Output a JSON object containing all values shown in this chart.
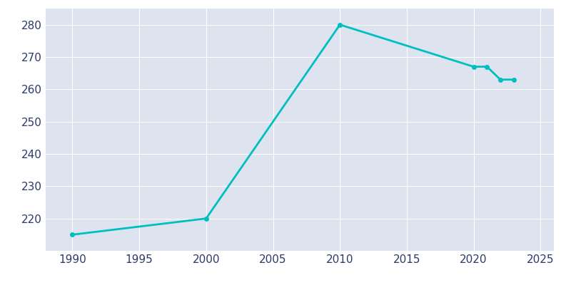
{
  "years": [
    1990,
    2000,
    2010,
    2020,
    2021,
    2022,
    2023
  ],
  "population": [
    215,
    220,
    280,
    267,
    267,
    263,
    263
  ],
  "line_color": "#00BFBF",
  "marker_color": "#00BFBF",
  "bg_color": "#FFFFFF",
  "plot_bg_color": "#DDE4EF",
  "grid_color": "#FFFFFF",
  "text_color": "#2B3A6B",
  "xlim": [
    1988,
    2026
  ],
  "ylim": [
    210,
    285
  ],
  "xticks": [
    1990,
    1995,
    2000,
    2005,
    2010,
    2015,
    2020,
    2025
  ],
  "yticks": [
    220,
    230,
    240,
    250,
    260,
    270,
    280
  ],
  "linewidth": 2.0,
  "markersize": 4
}
